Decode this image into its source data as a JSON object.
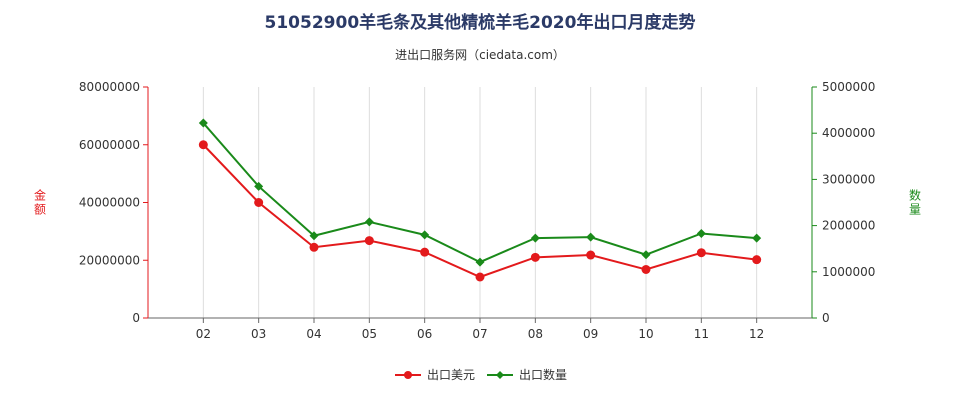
{
  "header": {
    "title": "51052900羊毛条及其他精梳羊毛2020年出口月度走势",
    "subtitle": "进出口服务网（ciedata.com）"
  },
  "chart_data": {
    "type": "line",
    "categories": [
      "02",
      "03",
      "04",
      "05",
      "06",
      "07",
      "08",
      "09",
      "10",
      "11",
      "12"
    ],
    "series": [
      {
        "name": "出口美元",
        "axis": "left",
        "color": "#e31a1c",
        "values": [
          60000000,
          40000000,
          24500000,
          26800000,
          22800000,
          14200000,
          21000000,
          21800000,
          16800000,
          22600000,
          20200000
        ]
      },
      {
        "name": "出口数量",
        "axis": "right",
        "color": "#1a8a1a",
        "values": [
          4220000,
          2850000,
          1780000,
          2080000,
          1800000,
          1210000,
          1730000,
          1750000,
          1370000,
          1830000,
          1730000
        ]
      }
    ],
    "y_left": {
      "label": "金额",
      "range": [
        0,
        80000000
      ],
      "ticks": [
        0,
        20000000,
        40000000,
        60000000,
        80000000
      ],
      "color": "#e31a1c"
    },
    "y_right": {
      "label": "数量",
      "range": [
        0,
        5000000
      ],
      "ticks": [
        0,
        1000000,
        2000000,
        3000000,
        4000000,
        5000000
      ],
      "color": "#1a8a1a"
    },
    "grid": "vertical",
    "legend": "bottom-center"
  }
}
